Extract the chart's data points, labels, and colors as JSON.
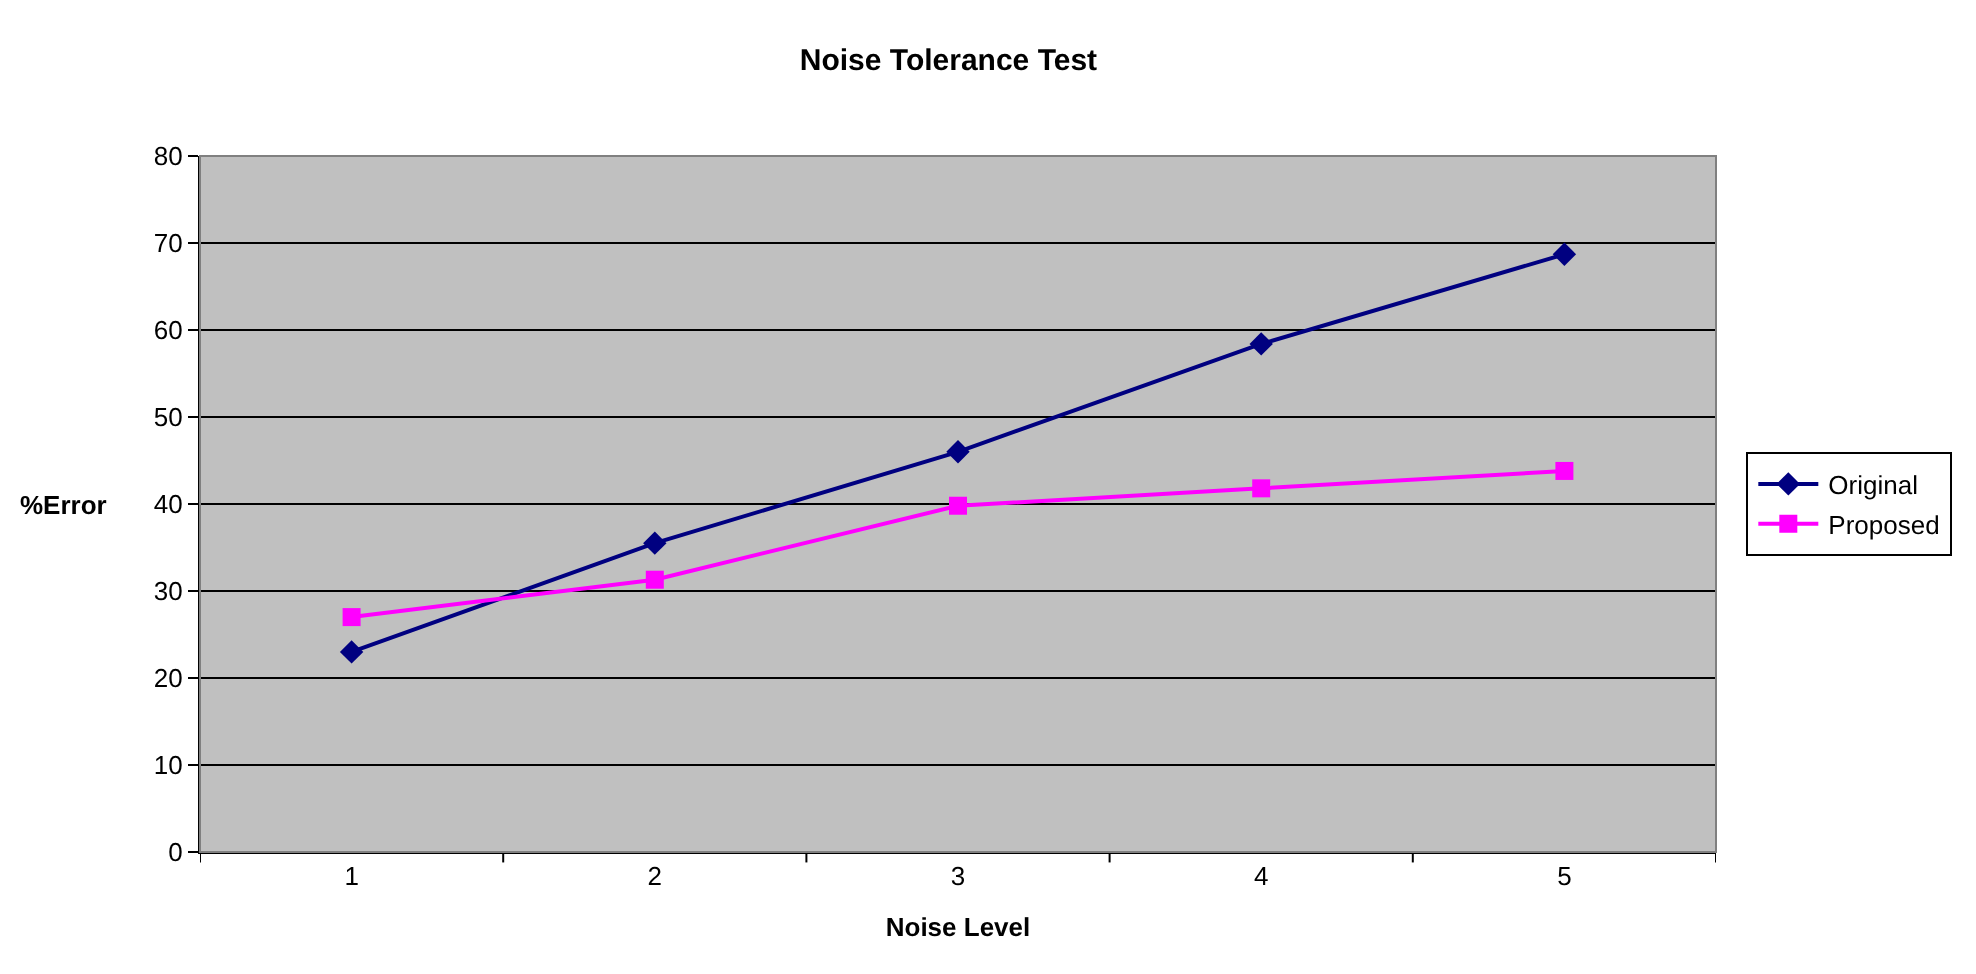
{
  "chart_data": {
    "type": "line",
    "title": "Noise Tolerance Test",
    "xlabel": "Noise Level",
    "ylabel": "%Error",
    "categories": [
      "1",
      "2",
      "3",
      "4",
      "5"
    ],
    "series": [
      {
        "name": "Original",
        "color": "#000080",
        "marker": "diamond",
        "values": [
          23.0,
          35.5,
          46.0,
          58.4,
          68.7
        ]
      },
      {
        "name": "Proposed",
        "color": "#ff00ff",
        "marker": "square",
        "values": [
          27.0,
          31.3,
          39.8,
          41.8,
          43.8
        ]
      }
    ],
    "ylim": [
      0,
      80
    ],
    "yticks": [
      0,
      10,
      20,
      30,
      40,
      50,
      60,
      70,
      80
    ],
    "grid": "y",
    "legend": "right",
    "line_style": "solid"
  }
}
